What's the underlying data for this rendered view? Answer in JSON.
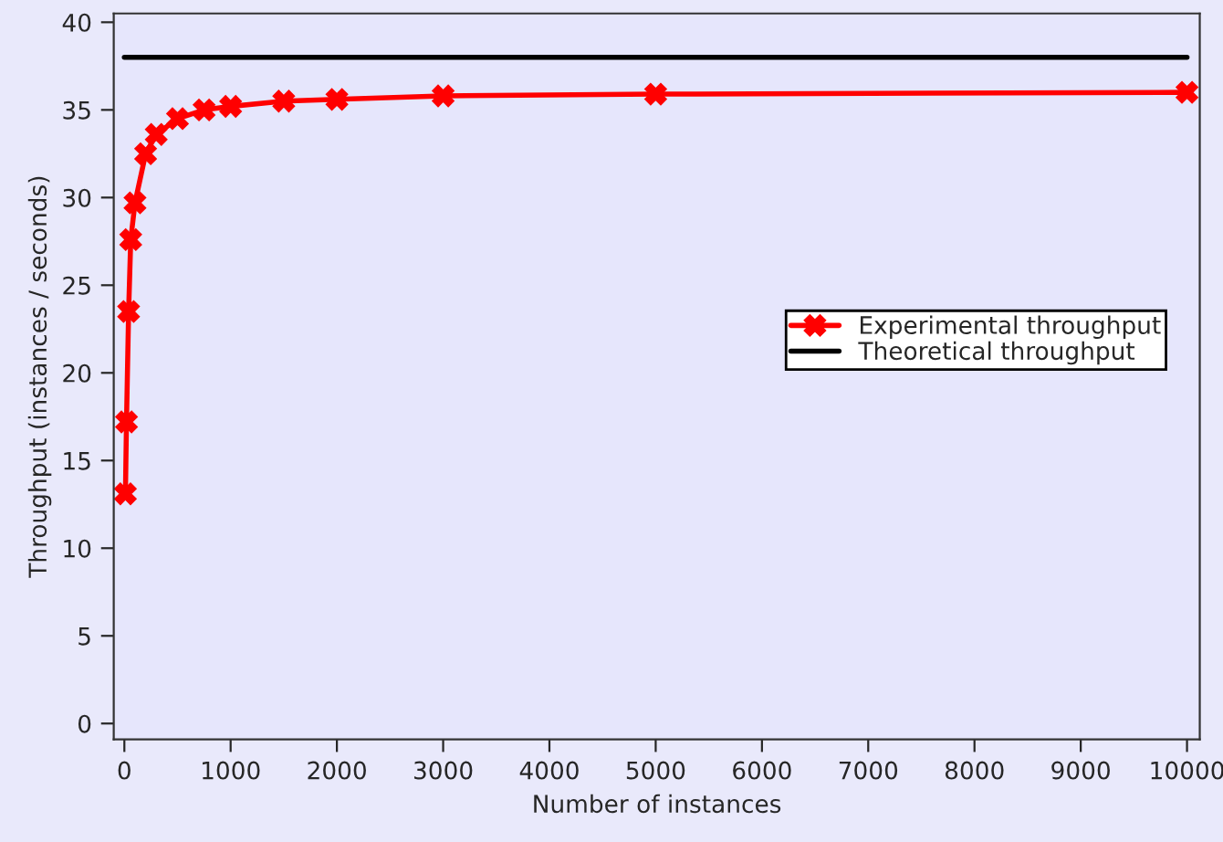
{
  "chart_data": {
    "type": "line",
    "xlabel": "Number of instances",
    "ylabel": "Throughput (instances / seconds)",
    "xlim": [
      -100,
      10120
    ],
    "ylim": [
      -0.9,
      40.5
    ],
    "xticks": [
      0,
      1000,
      2000,
      3000,
      4000,
      5000,
      6000,
      7000,
      8000,
      9000,
      10000
    ],
    "yticks": [
      0,
      5,
      10,
      15,
      20,
      25,
      30,
      35,
      40
    ],
    "grid": false,
    "legend": "right",
    "series": [
      {
        "name": "Experimental throughput",
        "color": "#ff0000",
        "marker": "cross",
        "x": [
          10,
          20,
          40,
          60,
          100,
          200,
          300,
          500,
          750,
          1000,
          1500,
          2000,
          3000,
          5000,
          10000
        ],
        "values": [
          13.1,
          17.2,
          23.5,
          27.6,
          29.7,
          32.5,
          33.6,
          34.5,
          35.0,
          35.2,
          35.5,
          35.6,
          35.8,
          35.9,
          36.0
        ]
      },
      {
        "name": "Theoretical throughput",
        "color": "#000000",
        "marker": "none",
        "x": [
          0,
          10000
        ],
        "values": [
          38,
          38
        ]
      }
    ]
  }
}
